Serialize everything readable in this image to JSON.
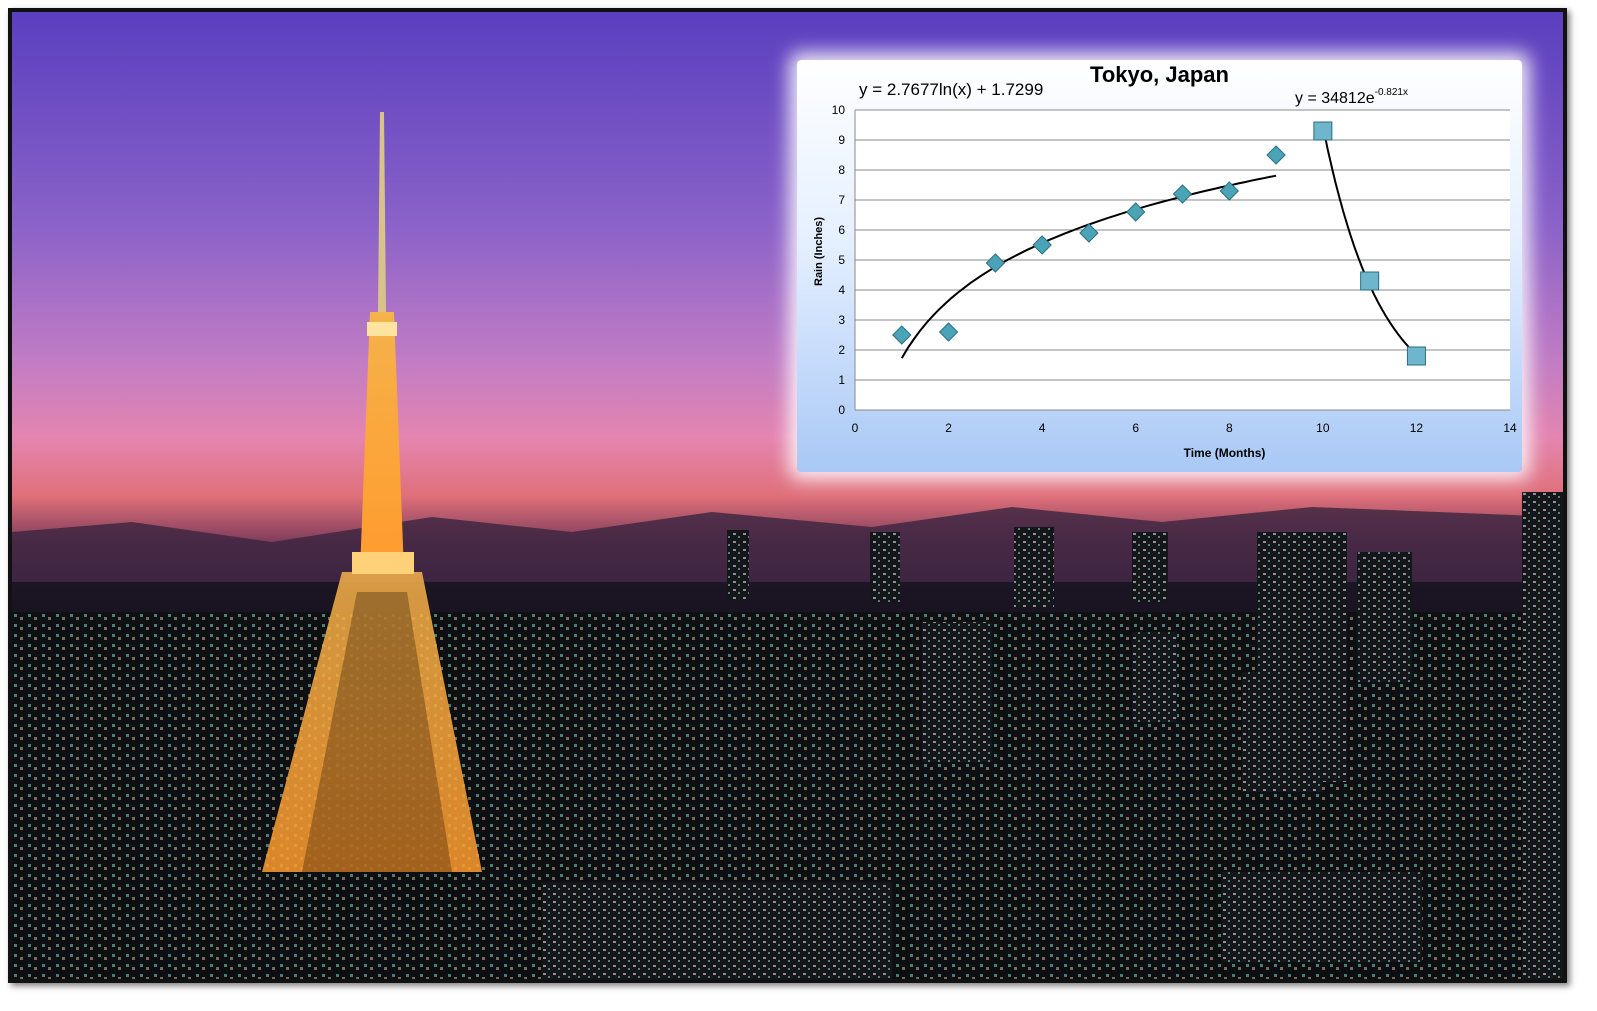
{
  "chart_data": {
    "type": "scatter",
    "title": "Tokyo, Japan",
    "xlabel": "Time (Months)",
    "ylabel": "Rain (Inches)",
    "xlim": [
      0,
      14
    ],
    "ylim": [
      0,
      10
    ],
    "x_ticks": [
      "0",
      "2",
      "4",
      "6",
      "8",
      "10",
      "12",
      "14"
    ],
    "y_ticks": [
      "0",
      "1",
      "2",
      "3",
      "4",
      "5",
      "6",
      "7",
      "8",
      "9",
      "10"
    ],
    "grid": "horizontal",
    "series": [
      {
        "marker": "diamond",
        "color": "#4ba3b8",
        "x": [
          1,
          2,
          3,
          4,
          5,
          6,
          7,
          8,
          9
        ],
        "y": [
          2.5,
          2.6,
          4.9,
          5.5,
          5.9,
          6.6,
          7.2,
          7.3,
          8.5
        ]
      },
      {
        "marker": "square",
        "color": "#6fb6cc",
        "x": [
          10,
          11,
          12
        ],
        "y": [
          9.3,
          4.3,
          1.8
        ]
      }
    ],
    "trendlines": [
      {
        "type": "log",
        "a": 2.7677,
        "b": 1.7299,
        "x_range": [
          1,
          9
        ],
        "label": "y = 2.7677ln(x) + 1.7299"
      },
      {
        "type": "exp",
        "a": 34812,
        "k": -0.821,
        "x_range": [
          10,
          12
        ],
        "label_base": "y = 34812e",
        "label_exp": "-0.821x"
      }
    ]
  }
}
